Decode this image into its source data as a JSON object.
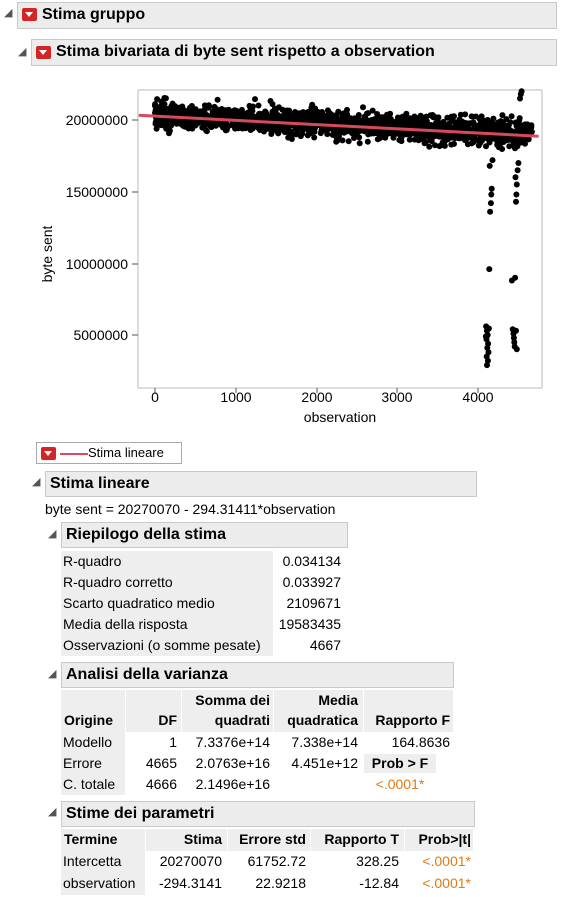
{
  "group": {
    "title": "Stima gruppo"
  },
  "bivariate": {
    "title": "Stima bivariata di byte sent rispetto a observation"
  },
  "chart_data": {
    "type": "scatter",
    "xlabel": "observation",
    "ylabel": "byte sent",
    "xlim": [
      -300,
      4800
    ],
    "ylim": [
      2500000,
      22500000
    ],
    "x_ticks": [
      "0",
      "1000",
      "2000",
      "3000",
      "4000"
    ],
    "y_ticks": [
      "5000000",
      "10000000",
      "15000000",
      "20000000"
    ],
    "point_color": "#000000",
    "fit_color": "#d84a5a",
    "fit_line": {
      "intercept": 20270070,
      "slope": -294.31411
    },
    "dense_band": {
      "x_range": [
        0,
        4667
      ],
      "y_center": 19700000,
      "y_spread": 1000000
    },
    "outliers": [
      {
        "x": 4100,
        "y": 5600000
      },
      {
        "x": 4110,
        "y": 5300000
      },
      {
        "x": 4120,
        "y": 5000000
      },
      {
        "x": 4105,
        "y": 4700000
      },
      {
        "x": 4125,
        "y": 4400000
      },
      {
        "x": 4115,
        "y": 4100000
      },
      {
        "x": 4130,
        "y": 3800000
      },
      {
        "x": 4108,
        "y": 3500000
      },
      {
        "x": 4122,
        "y": 3200000
      },
      {
        "x": 4112,
        "y": 2900000
      },
      {
        "x": 4135,
        "y": 5450000
      },
      {
        "x": 4098,
        "y": 4900000
      },
      {
        "x": 4140,
        "y": 9600000
      },
      {
        "x": 4150,
        "y": 13600000
      },
      {
        "x": 4160,
        "y": 14200000
      },
      {
        "x": 4165,
        "y": 14800000
      },
      {
        "x": 4170,
        "y": 15200000
      },
      {
        "x": 4145,
        "y": 16800000
      },
      {
        "x": 4180,
        "y": 17200000
      },
      {
        "x": 4430,
        "y": 5400000
      },
      {
        "x": 4440,
        "y": 5100000
      },
      {
        "x": 4445,
        "y": 4800000
      },
      {
        "x": 4450,
        "y": 4500000
      },
      {
        "x": 4455,
        "y": 4200000
      },
      {
        "x": 4470,
        "y": 5300000
      },
      {
        "x": 4480,
        "y": 4000000
      },
      {
        "x": 4460,
        "y": 9000000
      },
      {
        "x": 4420,
        "y": 8800000
      },
      {
        "x": 4470,
        "y": 14300000
      },
      {
        "x": 4475,
        "y": 14800000
      },
      {
        "x": 4480,
        "y": 15500000
      },
      {
        "x": 4465,
        "y": 16000000
      },
      {
        "x": 4490,
        "y": 16500000
      },
      {
        "x": 4500,
        "y": 17000000
      },
      {
        "x": 4510,
        "y": 18500000
      },
      {
        "x": 4520,
        "y": 21500000
      },
      {
        "x": 4530,
        "y": 21800000
      },
      {
        "x": 4540,
        "y": 22000000
      }
    ]
  },
  "legend": {
    "label": "Stima lineare"
  },
  "linear": {
    "title": "Stima lineare",
    "equation": "byte sent = 20270070 - 294.31411*observation"
  },
  "summary": {
    "title": "Riepilogo della stima",
    "rows": [
      {
        "label": "R-quadro",
        "value": "0.034134"
      },
      {
        "label": "R-quadro corretto",
        "value": "0.033927"
      },
      {
        "label": "Scarto quadratico medio",
        "value": "2109671"
      },
      {
        "label": "Media della risposta",
        "value": "19583435"
      },
      {
        "label": "Osservazioni (o somme pesate)",
        "value": "4667"
      }
    ]
  },
  "anova": {
    "title": "Analisi della varianza",
    "headers": {
      "source": "Origine",
      "df": "DF",
      "ss1": "Somma dei",
      "ss2": "quadrati",
      "ms1": "Media",
      "ms2": "quadratica",
      "f": "Rapporto F"
    },
    "rows": [
      {
        "source": "Modello",
        "df": "1",
        "ss": "7.3376e+14",
        "ms": "7.338e+14",
        "f": "164.8636"
      },
      {
        "source": "Errore",
        "df": "4665",
        "ss": "2.0763e+16",
        "ms": "4.451e+12",
        "f": "Prob > F"
      },
      {
        "source": "C. totale",
        "df": "4666",
        "ss": "2.1496e+16",
        "ms": "",
        "f": "<.0001*"
      }
    ]
  },
  "params": {
    "title": "Stime dei parametri",
    "headers": {
      "term": "Termine",
      "est": "Stima",
      "se": "Errore std",
      "t": "Rapporto T",
      "p": "Prob>|t|"
    },
    "rows": [
      {
        "term": "Intercetta",
        "est": "20270070",
        "se": "61752.72",
        "t": "328.25",
        "p": "<.0001*"
      },
      {
        "term": "observation",
        "est": "-294.3141",
        "se": "22.9218",
        "t": "-12.84",
        "p": "<.0001*"
      }
    ]
  }
}
